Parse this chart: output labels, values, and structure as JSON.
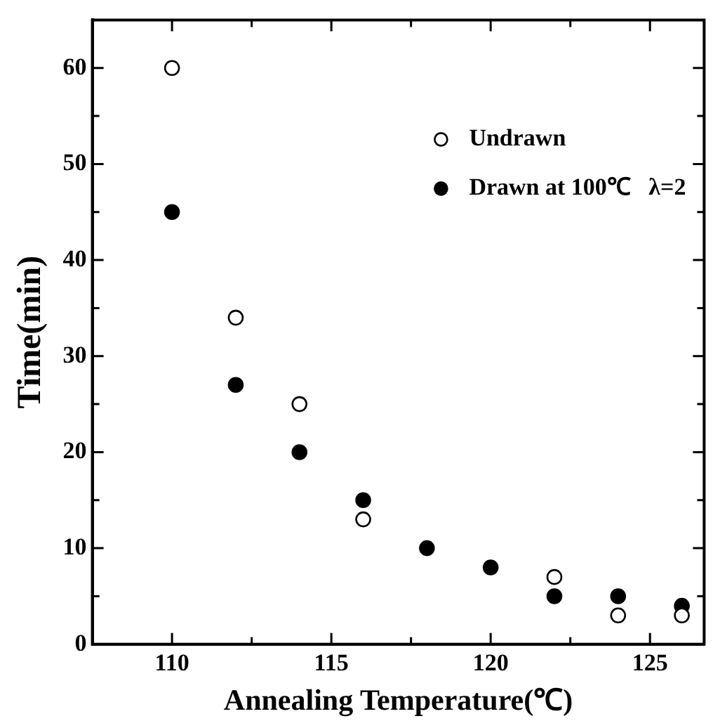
{
  "chart_data": {
    "type": "scatter",
    "xlabel": "Annealing Temperature(℃)",
    "ylabel": "Time(min)",
    "x": [
      110,
      112,
      114,
      116,
      118,
      120,
      122,
      124,
      126
    ],
    "series": [
      {
        "name": "Undrawn",
        "color": "#000000",
        "marker": "circle",
        "values": [
          60,
          34,
          25,
          13,
          null,
          null,
          7,
          3,
          3
        ]
      },
      {
        "name": "Drawn at 100℃   λ=2",
        "color": "#000000",
        "marker": "circle",
        "values": [
          45,
          27,
          20,
          15,
          10,
          8,
          5,
          5,
          4
        ]
      }
    ],
    "xlim": [
      107.5,
      126.7
    ],
    "ylim": [
      0,
      65
    ],
    "xticks": [
      110,
      {
        "value": 112.5,
        "label": null
      },
      115,
      {
        "value": 117.5,
        "label": null
      },
      120,
      {
        "value": 122.5,
        "label": null
      },
      125
    ],
    "yticks": [
      0,
      {
        "value": 5,
        "label": null
      },
      10,
      {
        "value": 15,
        "label": null
      },
      20,
      {
        "value": 25,
        "label": null
      },
      30,
      {
        "value": 35,
        "label": null
      },
      40,
      {
        "value": 45,
        "label": null
      },
      50,
      {
        "value": 55,
        "label": null
      },
      60
    ],
    "grid": false,
    "legend": "top right"
  }
}
